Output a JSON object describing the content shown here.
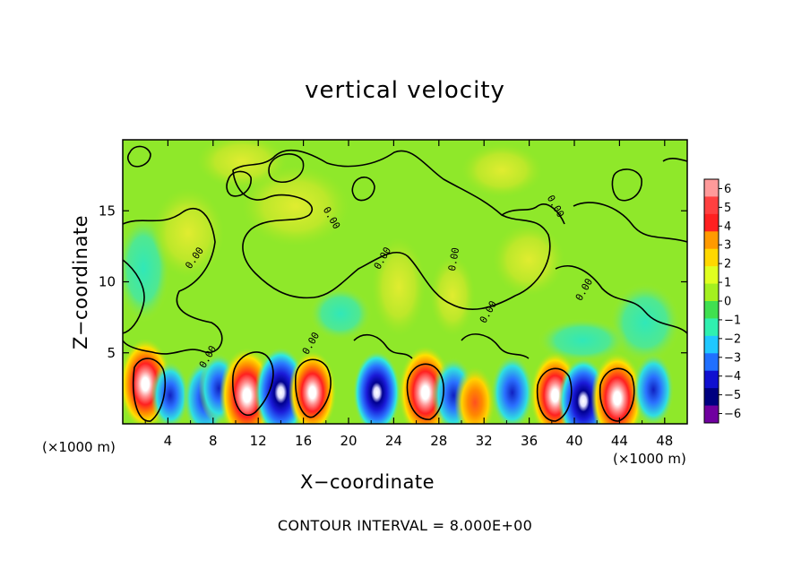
{
  "chart_data": {
    "type": "heatmap",
    "title": "vertical velocity",
    "xlabel": "X−coordinate",
    "ylabel": "Z−coordinate",
    "x_unit_left": "(×1000 m)",
    "x_unit_right": "(×1000 m)",
    "xlim": [
      0,
      50
    ],
    "ylim": [
      0,
      20
    ],
    "x_ticks": [
      4,
      8,
      12,
      16,
      20,
      24,
      28,
      32,
      36,
      40,
      44,
      48
    ],
    "x_tick_labels": [
      "4",
      "8",
      "12",
      "16",
      "20",
      "24",
      "28",
      "32",
      "36",
      "40",
      "44",
      "48"
    ],
    "y_ticks": [
      5,
      10,
      15
    ],
    "y_tick_labels": [
      "5",
      "10",
      "15"
    ],
    "colorbar": {
      "range": [
        -6,
        6
      ],
      "labels": [
        "6",
        "5",
        "4",
        "3",
        "2",
        "1",
        "0",
        "−1",
        "−2",
        "−3",
        "−4",
        "−5",
        "−6"
      ],
      "colors": [
        "#ff9a9a",
        "#ff4040",
        "#ff2020",
        "#ff9a00",
        "#ffd800",
        "#e0ff20",
        "#a4f020",
        "#40e050",
        "#30f0b0",
        "#20c8ff",
        "#2070ff",
        "#1010d0",
        "#000080",
        "#7000a0"
      ]
    },
    "contour_interval_label": "CONTOUR INTERVAL = 8.000E+00",
    "contour_labels": [
      "0.00",
      "0.00",
      "0.00",
      "0.00",
      "0.00",
      "0.00",
      "0.00",
      "0.00",
      "0.00"
    ],
    "cells": [
      {
        "x": 2.0,
        "z": 2.8,
        "w": 5.5
      },
      {
        "x": 4.2,
        "z": 2.0,
        "w": -2.5
      },
      {
        "x": 7.3,
        "z": 1.8,
        "w": -3.8
      },
      {
        "x": 8.5,
        "z": 2.5,
        "w": -2.8
      },
      {
        "x": 11.0,
        "z": 2.0,
        "w": 6.0
      },
      {
        "x": 14.0,
        "z": 2.2,
        "w": -5.5
      },
      {
        "x": 16.8,
        "z": 2.2,
        "w": 4.5
      },
      {
        "x": 22.5,
        "z": 2.2,
        "w": -4.5
      },
      {
        "x": 26.8,
        "z": 2.2,
        "w": 5.8
      },
      {
        "x": 29.3,
        "z": 2.0,
        "w": -3.5
      },
      {
        "x": 31.2,
        "z": 1.5,
        "w": 3.0
      },
      {
        "x": 34.5,
        "z": 2.2,
        "w": -3.5
      },
      {
        "x": 38.3,
        "z": 2.0,
        "w": 5.0
      },
      {
        "x": 40.8,
        "z": 1.6,
        "w": -5.0
      },
      {
        "x": 43.8,
        "z": 1.8,
        "w": 5.5
      },
      {
        "x": 47.0,
        "z": 2.4,
        "w": -3.2
      }
    ]
  }
}
